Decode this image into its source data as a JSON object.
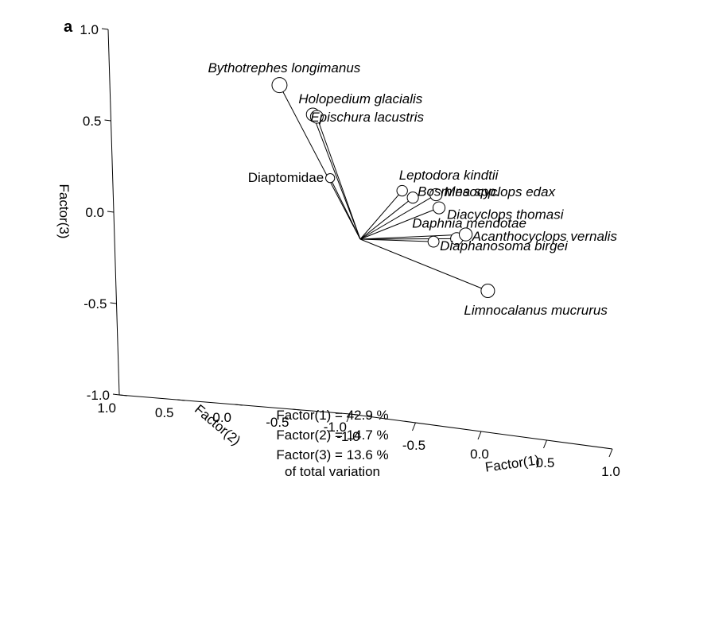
{
  "chart_data": {
    "type": "scatter",
    "subtype": "3d-loading-plot",
    "panel_label": "a",
    "axes": {
      "factor1": {
        "label": "Factor(1)",
        "range": [
          -1.0,
          1.0
        ],
        "ticks": [
          "-1.0",
          "-0.5",
          "0.0",
          "0.5",
          "1.0"
        ]
      },
      "factor2": {
        "label": "Factor(2)",
        "range": [
          -1.0,
          1.0
        ],
        "ticks": [
          "-1.0",
          "-0.5",
          "0.0",
          "0.5",
          "1.0"
        ]
      },
      "factor3": {
        "label": "Factor(3)",
        "range": [
          -1.0,
          1.0
        ],
        "ticks": [
          "-1.0",
          "-0.5",
          "0.0",
          "0.5",
          "1.0"
        ]
      }
    },
    "variance_explained": [
      "Factor(1) = 42.9 %",
      "Factor(2) = 14.7 %",
      "Factor(3) = 13.6 %",
      "of total variation"
    ],
    "origin": {
      "factor1": 0.0,
      "factor2": 0.0,
      "factor3": 0.0
    },
    "points": [
      {
        "label": "Bythotrephes longimanus",
        "italic": true,
        "factor1": -0.23,
        "factor2": 0.4,
        "factor3": 0.8
      },
      {
        "label": "Holopedium glacialis",
        "italic": true,
        "factor1": -0.07,
        "factor2": 0.3,
        "factor3": 0.66
      },
      {
        "label": "Epischura lacustris",
        "italic": true,
        "factor1": -0.04,
        "factor2": 0.3,
        "factor3": 0.65
      },
      {
        "label": "Diaptomidae",
        "italic": false,
        "factor1": -0.04,
        "factor2": 0.2,
        "factor3": 0.32
      },
      {
        "label": "Leptodora kindtii",
        "italic": true,
        "factor1": 0.42,
        "factor2": 0.1,
        "factor3": 0.3
      },
      {
        "label": "Bosmina spp.",
        "italic": true,
        "factor1": 0.5,
        "factor2": 0.1,
        "factor3": 0.27
      },
      {
        "label": "Mesocyclops edax",
        "italic": true,
        "factor1": 0.59,
        "factor2": 0.0,
        "factor3": 0.3
      },
      {
        "label": "Diacyclops thomasi",
        "italic": true,
        "factor1": 0.61,
        "factor2": 0.0,
        "factor3": 0.23
      },
      {
        "label": "Daphnia mendotae",
        "italic": true,
        "factor1": 0.65,
        "factor2": -0.1,
        "factor3": 0.07
      },
      {
        "label": "Acanthocyclops vernalis",
        "italic": true,
        "factor1": 0.72,
        "factor2": -0.1,
        "factor3": 0.1
      },
      {
        "label": "Diaphanosoma birgei",
        "italic": true,
        "factor1": 0.56,
        "factor2": 0.0,
        "factor3": 0.04
      },
      {
        "label": "Limnocalanus mucrurus",
        "italic": true,
        "factor1": 0.7,
        "factor2": -0.3,
        "factor3": -0.2
      }
    ]
  }
}
